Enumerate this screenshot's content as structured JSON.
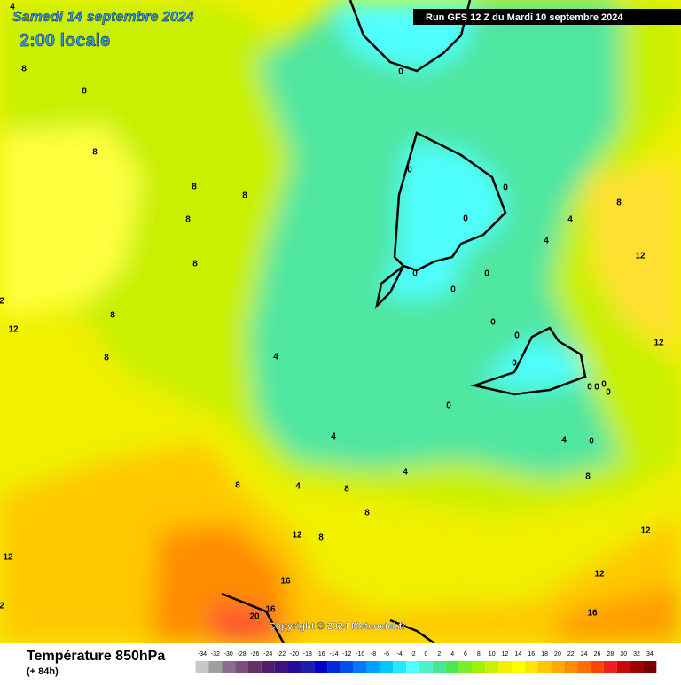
{
  "header": {
    "date": "Samedi 14 septembre 2024",
    "time": "2:00 locale",
    "run": "Run GFS 12 Z du Mardi 10 septembre 2024"
  },
  "copyright": "Copyright © 2024 Meteociel.fr",
  "footer": {
    "title": "Température 850hPa",
    "lead": "(+ 84h)"
  },
  "legend": {
    "labels": [
      -34,
      -32,
      -30,
      -28,
      -26,
      -24,
      -22,
      -20,
      -18,
      -16,
      -14,
      -12,
      -10,
      -8,
      -6,
      -4,
      -2,
      0,
      2,
      4,
      6,
      8,
      10,
      12,
      14,
      16,
      18,
      20,
      22,
      24,
      26,
      28,
      30,
      32,
      34
    ],
    "colors": [
      "#c8c8c8",
      "#a0a0a0",
      "#8c6e8c",
      "#7a507a",
      "#643264",
      "#501e6e",
      "#3c1482",
      "#280a96",
      "#1e1eaa",
      "#0000c8",
      "#0028dc",
      "#0050f0",
      "#0078ff",
      "#00a0ff",
      "#00c8ff",
      "#28e6ff",
      "#50ffff",
      "#50f0c8",
      "#46e696",
      "#50e650",
      "#78f028",
      "#a0f000",
      "#c8f000",
      "#f0f000",
      "#ffff00",
      "#ffe600",
      "#ffc800",
      "#ffaa00",
      "#ff8c00",
      "#ff6e00",
      "#ff4600",
      "#f01e1e",
      "#c80a0a",
      "#a00000",
      "#780000"
    ]
  },
  "contour_labels": [
    4,
    8,
    8,
    8,
    8,
    8,
    8,
    8,
    8,
    8,
    2,
    12,
    0,
    0,
    0,
    0,
    0,
    0,
    0,
    0,
    0,
    0,
    0,
    0,
    0,
    0,
    0,
    0,
    4,
    4,
    4,
    4,
    4,
    4,
    4,
    8,
    12,
    12,
    8,
    8,
    8,
    8,
    8,
    12,
    12,
    12,
    12,
    16,
    16,
    20,
    16,
    2
  ]
}
